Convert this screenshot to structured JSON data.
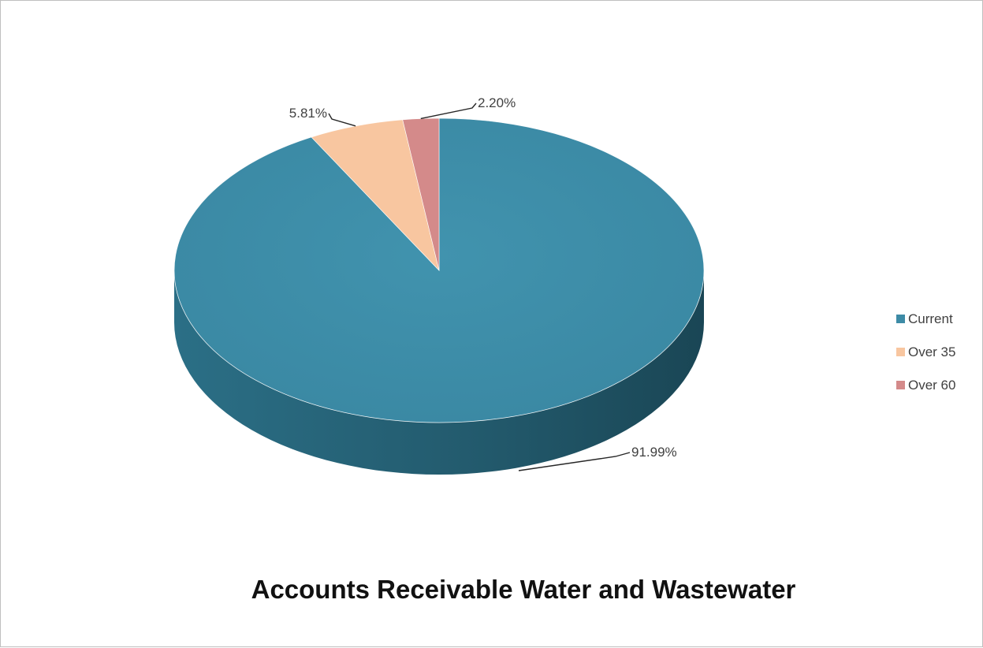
{
  "chart_data": {
    "type": "pie",
    "style": "3d",
    "title": "Accounts Receivable Water and Wastewater",
    "categories": [
      "Current",
      "Over 35",
      "Over 60"
    ],
    "values": [
      91.99,
      5.81,
      2.2
    ],
    "data_labels": [
      "91.99%",
      "5.81%",
      "2.20%"
    ],
    "colors": [
      "#3d8ba6",
      "#f8c6a0",
      "#d48a8a"
    ],
    "legend_position": "right"
  }
}
